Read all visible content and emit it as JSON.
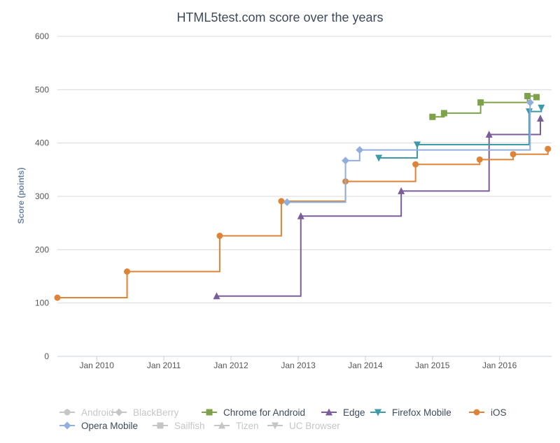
{
  "chart_data": {
    "type": "line",
    "step": true,
    "title": "HTML5test.com score over the years",
    "xlabel": "",
    "ylabel": "Score (points)",
    "ylim": [
      0,
      600
    ],
    "yticks": [
      0,
      100,
      200,
      300,
      400,
      500,
      600
    ],
    "xlim": [
      "2009-06-01",
      "2016-10-10"
    ],
    "xticks": [
      {
        "date": "2010-01-01",
        "label": "Jan 2010"
      },
      {
        "date": "2011-01-01",
        "label": "Jan 2011"
      },
      {
        "date": "2012-01-01",
        "label": "Jan 2012"
      },
      {
        "date": "2013-01-01",
        "label": "Jan 2013"
      },
      {
        "date": "2014-01-01",
        "label": "Jan 2014"
      },
      {
        "date": "2015-01-01",
        "label": "Jan 2015"
      },
      {
        "date": "2016-01-01",
        "label": "Jan 2016"
      }
    ],
    "grid": true,
    "legend": "bottom",
    "series": [
      {
        "name": "Android",
        "color": "#c6c6c6",
        "marker": "circle",
        "visible": false,
        "points": []
      },
      {
        "name": "BlackBerry",
        "color": "#c6c6c6",
        "marker": "diamond",
        "visible": false,
        "points": []
      },
      {
        "name": "Chrome for Android",
        "color": "#7ea24a",
        "marker": "square",
        "visible": true,
        "points": [
          [
            "2015-01-01",
            449
          ],
          [
            "2015-03-05",
            456
          ],
          [
            "2015-09-20",
            476
          ],
          [
            "2016-06-01",
            488
          ],
          [
            "2016-07-20",
            486
          ]
        ]
      },
      {
        "name": "Edge",
        "color": "#7a5e9b",
        "marker": "triangle",
        "visible": true,
        "points": [
          [
            "2011-10-15",
            113
          ],
          [
            "2013-01-15",
            263
          ],
          [
            "2014-07-15",
            310
          ],
          [
            "2015-11-05",
            416
          ],
          [
            "2016-08-10",
            446
          ]
        ]
      },
      {
        "name": "Firefox Mobile",
        "color": "#3d9aa8",
        "marker": "triangle-down",
        "visible": true,
        "points": [
          [
            "2014-03-15",
            372
          ],
          [
            "2014-10-10",
            397
          ],
          [
            "2016-06-10",
            459
          ],
          [
            "2016-08-15",
            466
          ]
        ]
      },
      {
        "name": "iOS",
        "color": "#de8439",
        "marker": "circle",
        "visible": true,
        "points": [
          [
            "2009-06-01",
            110
          ],
          [
            "2010-06-15",
            159
          ],
          [
            "2011-11-01",
            226
          ],
          [
            "2012-10-01",
            291
          ],
          [
            "2013-09-15",
            328
          ],
          [
            "2014-10-01",
            360
          ],
          [
            "2015-09-15",
            369
          ],
          [
            "2016-03-15",
            379
          ],
          [
            "2016-09-20",
            389
          ]
        ]
      },
      {
        "name": "Opera Mobile",
        "color": "#92aedb",
        "marker": "diamond",
        "visible": true,
        "points": [
          [
            "2012-11-01",
            289
          ],
          [
            "2013-09-15",
            367
          ],
          [
            "2013-12-01",
            387
          ],
          [
            "2016-06-15",
            476
          ]
        ]
      },
      {
        "name": "Sailfish",
        "color": "#c6c6c6",
        "marker": "square",
        "visible": false,
        "points": []
      },
      {
        "name": "Tizen",
        "color": "#c6c6c6",
        "marker": "triangle",
        "visible": false,
        "points": []
      },
      {
        "name": "UC Browser",
        "color": "#c6c6c6",
        "marker": "triangle-down",
        "visible": false,
        "points": []
      }
    ]
  },
  "colors": {
    "legend_text_active": "#3e4a5c",
    "legend_text_hidden": "#c6c6c6"
  }
}
